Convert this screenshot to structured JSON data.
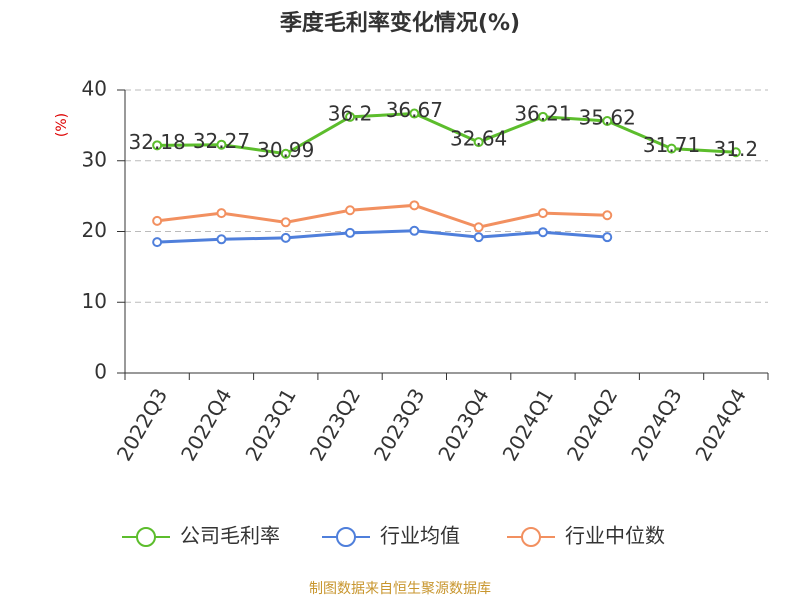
{
  "chart_data": {
    "type": "line",
    "title": "季度毛利率变化情况(%)",
    "y_label": "(%)",
    "categories": [
      "2022Q3",
      "2022Q4",
      "2023Q1",
      "2023Q2",
      "2023Q3",
      "2023Q4",
      "2024Q1",
      "2024Q2",
      "2024Q3",
      "2024Q4"
    ],
    "series": [
      {
        "name": "公司毛利率",
        "color": "#5cbd2c",
        "values": [
          32.18,
          32.27,
          30.99,
          36.2,
          36.67,
          32.64,
          36.21,
          35.62,
          31.71,
          31.2
        ],
        "show_labels": true
      },
      {
        "name": "行业均值",
        "color": "#4f7fdb",
        "values": [
          18.5,
          18.9,
          19.1,
          19.8,
          20.1,
          19.2,
          19.9,
          19.2,
          null,
          null
        ]
      },
      {
        "name": "行业中位数",
        "color": "#f29060",
        "values": [
          21.5,
          22.6,
          21.3,
          23.0,
          23.7,
          20.6,
          22.6,
          22.3,
          null,
          null
        ]
      }
    ],
    "ylim": [
      0,
      40
    ],
    "yticks": [
      0,
      10,
      20,
      30,
      40
    ],
    "grid": true,
    "source": "制图数据来自恒生聚源数据库"
  }
}
